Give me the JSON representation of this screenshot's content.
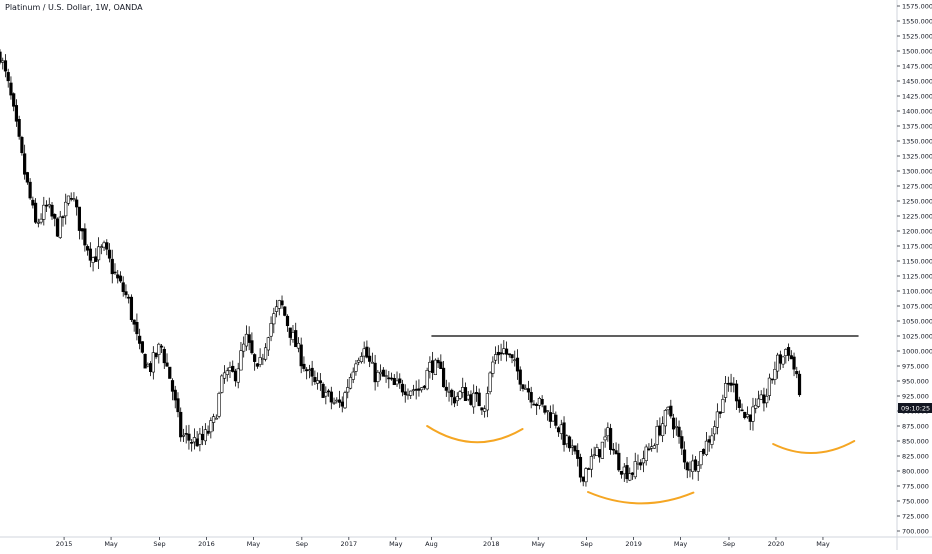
{
  "chart_data": {
    "type": "candlestick",
    "title": "Platinum / U.S. Dollar, 1W, OANDA",
    "price_axis_labels": [
      "1575.000",
      "1550.000",
      "1525.000",
      "1500.000",
      "1475.000",
      "1450.000",
      "1425.000",
      "1400.000",
      "1375.000",
      "1350.000",
      "1325.000",
      "1300.000",
      "1275.000",
      "1250.000",
      "1225.000",
      "1200.000",
      "1175.000",
      "1150.000",
      "1125.000",
      "1100.000",
      "1075.000",
      "1050.000",
      "1025.000",
      "1000.000",
      "975.000",
      "950.000",
      "925.000",
      "900.000",
      "875.000",
      "850.000",
      "825.000",
      "800.000",
      "775.000",
      "750.000",
      "725.000",
      "700.000"
    ],
    "ylim": [
      690,
      1585
    ],
    "time_axis_labels": [
      {
        "label": "2015",
        "t": 2015.0
      },
      {
        "label": "May",
        "t": 2015.33
      },
      {
        "label": "Sep",
        "t": 2015.67
      },
      {
        "label": "2016",
        "t": 2016.0
      },
      {
        "label": "May",
        "t": 2016.33
      },
      {
        "label": "Sep",
        "t": 2016.67
      },
      {
        "label": "2017",
        "t": 2017.0
      },
      {
        "label": "May",
        "t": 2017.33
      },
      {
        "label": "Aug",
        "t": 2017.58
      },
      {
        "label": "2018",
        "t": 2018.0
      },
      {
        "label": "May",
        "t": 2018.33
      },
      {
        "label": "Sep",
        "t": 2018.67
      },
      {
        "label": "2019",
        "t": 2019.0
      },
      {
        "label": "May",
        "t": 2019.33
      },
      {
        "label": "Sep",
        "t": 2019.67
      },
      {
        "label": "2020",
        "t": 2020.0
      },
      {
        "label": "May",
        "t": 2020.33
      }
    ],
    "xlim": [
      2014.55,
      2020.85
    ],
    "current_price_label": "09:10:25",
    "current_price": 905,
    "anchors": [
      [
        2014.55,
        1495
      ],
      [
        2014.62,
        1430
      ],
      [
        2014.72,
        1300
      ],
      [
        2014.8,
        1210
      ],
      [
        2014.88,
        1240
      ],
      [
        2014.96,
        1200
      ],
      [
        2015.05,
        1265
      ],
      [
        2015.12,
        1200
      ],
      [
        2015.2,
        1155
      ],
      [
        2015.28,
        1170
      ],
      [
        2015.36,
        1125
      ],
      [
        2015.45,
        1085
      ],
      [
        2015.53,
        1000
      ],
      [
        2015.6,
        970
      ],
      [
        2015.68,
        1010
      ],
      [
        2015.75,
        950
      ],
      [
        2015.82,
        860
      ],
      [
        2015.9,
        850
      ],
      [
        2015.97,
        850
      ],
      [
        2016.05,
        880
      ],
      [
        2016.12,
        960
      ],
      [
        2016.2,
        960
      ],
      [
        2016.28,
        1020
      ],
      [
        2016.36,
        960
      ],
      [
        2016.44,
        1040
      ],
      [
        2016.52,
        1080
      ],
      [
        2016.6,
        1025
      ],
      [
        2016.68,
        980
      ],
      [
        2016.75,
        945
      ],
      [
        2016.82,
        935
      ],
      [
        2016.88,
        915
      ],
      [
        2016.95,
        910
      ],
      [
        2017.05,
        990
      ],
      [
        2017.1,
        1005
      ],
      [
        2017.18,
        960
      ],
      [
        2017.25,
        955
      ],
      [
        2017.32,
        940
      ],
      [
        2017.4,
        940
      ],
      [
        2017.5,
        935
      ],
      [
        2017.58,
        980
      ],
      [
        2017.65,
        960
      ],
      [
        2017.72,
        920
      ],
      [
        2017.8,
        930
      ],
      [
        2017.88,
        920
      ],
      [
        2017.95,
        910
      ],
      [
        2018.02,
        990
      ],
      [
        2018.08,
        1005
      ],
      [
        2018.15,
        980
      ],
      [
        2018.22,
        950
      ],
      [
        2018.3,
        920
      ],
      [
        2018.38,
        900
      ],
      [
        2018.44,
        890
      ],
      [
        2018.52,
        850
      ],
      [
        2018.58,
        830
      ],
      [
        2018.63,
        790
      ],
      [
        2018.68,
        810
      ],
      [
        2018.75,
        830
      ],
      [
        2018.82,
        860
      ],
      [
        2018.88,
        820
      ],
      [
        2018.94,
        800
      ],
      [
        2019.0,
        800
      ],
      [
        2019.06,
        820
      ],
      [
        2019.12,
        840
      ],
      [
        2019.18,
        870
      ],
      [
        2019.25,
        900
      ],
      [
        2019.3,
        870
      ],
      [
        2019.36,
        810
      ],
      [
        2019.42,
        810
      ],
      [
        2019.5,
        840
      ],
      [
        2019.56,
        870
      ],
      [
        2019.62,
        920
      ],
      [
        2019.68,
        950
      ],
      [
        2019.72,
        930
      ],
      [
        2019.78,
        890
      ],
      [
        2019.86,
        900
      ],
      [
        2019.94,
        930
      ],
      [
        2020.0,
        980
      ],
      [
        2020.05,
        990
      ],
      [
        2020.08,
        1010
      ],
      [
        2020.12,
        975
      ],
      [
        2020.15,
        960
      ],
      [
        2020.18,
        870
      ]
    ],
    "annotations": {
      "resistance_line": {
        "price": 1025,
        "t_start": 2017.58,
        "t_end": 2020.58,
        "color": "#000000"
      },
      "arcs": [
        {
          "t_start": 2017.55,
          "t_end": 2018.22,
          "y_start": 875,
          "y_low": 848,
          "y_end": 870,
          "color": "#f5a623"
        },
        {
          "t_start": 2018.68,
          "t_end": 2019.42,
          "y_start": 765,
          "y_low": 746,
          "y_end": 764,
          "color": "#f5a623"
        },
        {
          "t_start": 2019.98,
          "t_end": 2020.55,
          "y_start": 845,
          "y_low": 830,
          "y_end": 850,
          "color": "#f5a623"
        }
      ]
    },
    "colors": {
      "candle": "#000000",
      "badge": "#131722",
      "grid": "#e6e6e6"
    }
  }
}
